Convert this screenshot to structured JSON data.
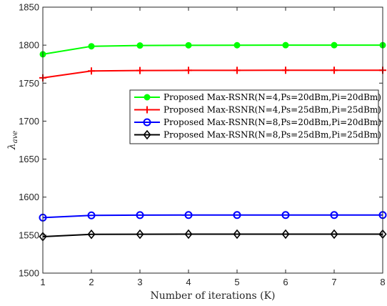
{
  "chart_data": {
    "type": "line",
    "title": "",
    "xlabel": "Number of iterations (K)",
    "ylabel_main": "λ",
    "ylabel_sub": "ave",
    "x": [
      1,
      2,
      3,
      4,
      5,
      6,
      7,
      8
    ],
    "xlim": [
      1,
      8
    ],
    "ylim": [
      1500,
      1850
    ],
    "xticks": [
      "1",
      "2",
      "3",
      "4",
      "5",
      "6",
      "7",
      "8"
    ],
    "yticks": [
      "1500",
      "1550",
      "1600",
      "1650",
      "1700",
      "1750",
      "1800",
      "1850"
    ],
    "grid": false,
    "legend_position": "right",
    "series": [
      {
        "name": "Proposed Max-RSNR(N=4,Ps=20dBm,Pi=20dBm)",
        "color": "#00ff00",
        "marker": "filled-circle",
        "values": [
          1788,
          1798.5,
          1799.5,
          1799.8,
          1799.9,
          1800,
          1800,
          1800
        ]
      },
      {
        "name": "Proposed Max-RSNR(N=4,Ps=25dBm,Pi=25dBm)",
        "color": "#ff0000",
        "marker": "plus",
        "values": [
          1757,
          1766,
          1766.6,
          1766.8,
          1766.9,
          1767,
          1767,
          1767
        ]
      },
      {
        "name": "Proposed Max-RSNR(N=8,Ps=20dBm,Pi=20dBm)",
        "color": "#0000ff",
        "marker": "circle",
        "values": [
          1573,
          1576,
          1576.3,
          1576.4,
          1576.4,
          1576.4,
          1576.4,
          1576.4
        ]
      },
      {
        "name": "Proposed Max-RSNR(N=8,Ps=25dBm,Pi=25dBm)",
        "color": "#000000",
        "marker": "diamond",
        "values": [
          1548,
          1551,
          1551.2,
          1551.3,
          1551.3,
          1551.3,
          1551.3,
          1551.3
        ]
      }
    ]
  }
}
